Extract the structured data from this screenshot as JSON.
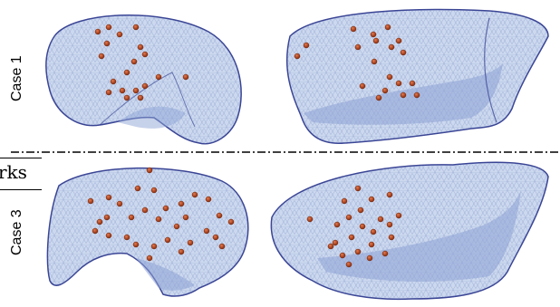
{
  "labels": {
    "case_top": "Case 1",
    "case_bottom": "Case 3",
    "fragment": "rks"
  },
  "colors": {
    "mesh_fill": "#c9d6ee",
    "mesh_line": "#2f3a8f",
    "landmark": "#b5461c",
    "divider": "#000000"
  },
  "meshes": [
    {
      "name": "case1-left-mesh"
    },
    {
      "name": "case1-right-mesh"
    },
    {
      "name": "case3-left-mesh"
    },
    {
      "name": "case3-right-mesh"
    }
  ]
}
